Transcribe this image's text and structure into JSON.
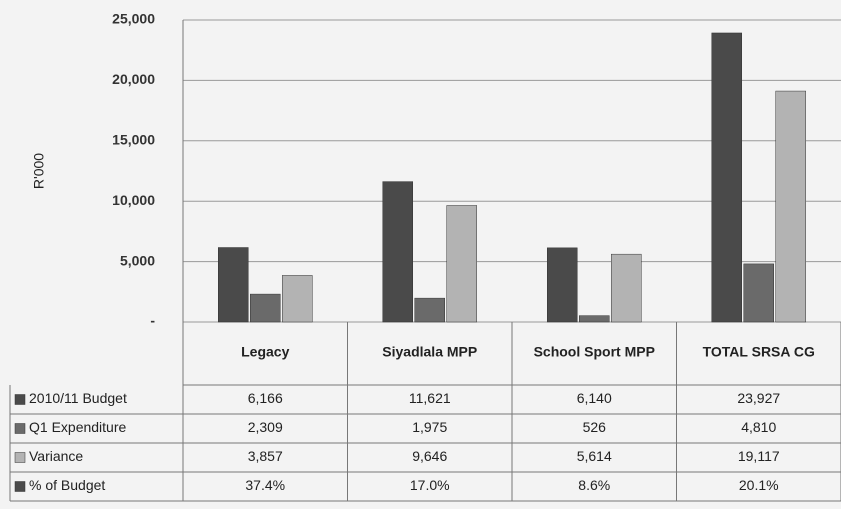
{
  "chart_data": {
    "type": "bar",
    "ylabel": "R'000",
    "categories": [
      "Legacy",
      "Siyadlala MPP",
      "School Sport MPP",
      "TOTAL SRSA CG"
    ],
    "series": [
      {
        "name": "2010/11 Budget",
        "color": "#4a4a4a",
        "values": [
          6166,
          11621,
          6140,
          23927
        ],
        "value_labels": [
          "6,166",
          "11,621",
          "6,140",
          "23,927"
        ]
      },
      {
        "name": "Q1 Expenditure",
        "color": "#6a6a6a",
        "values": [
          2309,
          1975,
          526,
          4810
        ],
        "value_labels": [
          "2,309",
          "1,975",
          "526",
          "4,810"
        ]
      },
      {
        "name": "Variance",
        "color": "#b3b3b3",
        "values": [
          3857,
          9646,
          5614,
          19117
        ],
        "value_labels": [
          "3,857",
          "9,646",
          "5,614",
          "19,117"
        ]
      },
      {
        "name": "% of Budget",
        "color": "#4a4a4a",
        "values": [
          37.4,
          17.0,
          8.6,
          20.1
        ],
        "value_labels": [
          "37.4%",
          "17.0%",
          "8.6%",
          "20.1%"
        ],
        "bars": false
      }
    ],
    "ylim": [
      0,
      25000
    ],
    "yticks": [
      {
        "value": 0,
        "label": "-"
      },
      {
        "value": 5000,
        "label": "5,000"
      },
      {
        "value": 10000,
        "label": "10,000"
      },
      {
        "value": 15000,
        "label": "15,000"
      },
      {
        "value": 20000,
        "label": "20,000"
      },
      {
        "value": 25000,
        "label": "25,000"
      }
    ],
    "grid": true
  }
}
